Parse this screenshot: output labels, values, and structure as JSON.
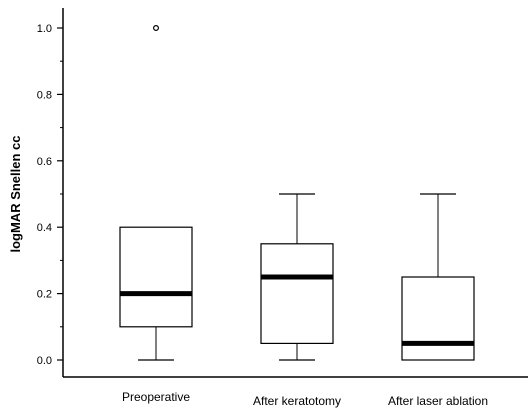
{
  "chart_data": {
    "type": "box",
    "ylabel": "logMAR Snellen cc",
    "ylim": [
      -0.03,
      1.07
    ],
    "yticks": [
      0.0,
      0.2,
      0.4,
      0.6,
      0.8,
      1.0
    ],
    "ytick_labels": [
      "0.0",
      "0.2",
      "0.4",
      "0.6",
      "0.8",
      "1.0"
    ],
    "minor_ticks": true,
    "grid": false,
    "categories": [
      "Preoperative",
      "After keratotomy",
      "After laser ablation"
    ],
    "boxes": [
      {
        "whisker_low": 0.0,
        "q1": 0.1,
        "median": 0.2,
        "q3": 0.4,
        "whisker_high": 0.4,
        "outliers": [
          1.0
        ]
      },
      {
        "whisker_low": 0.0,
        "q1": 0.05,
        "median": 0.25,
        "q3": 0.35,
        "whisker_high": 0.5,
        "outliers": []
      },
      {
        "whisker_low": 0.0,
        "q1": 0.0,
        "median": 0.05,
        "q3": 0.25,
        "whisker_high": 0.5,
        "outliers": []
      }
    ]
  }
}
